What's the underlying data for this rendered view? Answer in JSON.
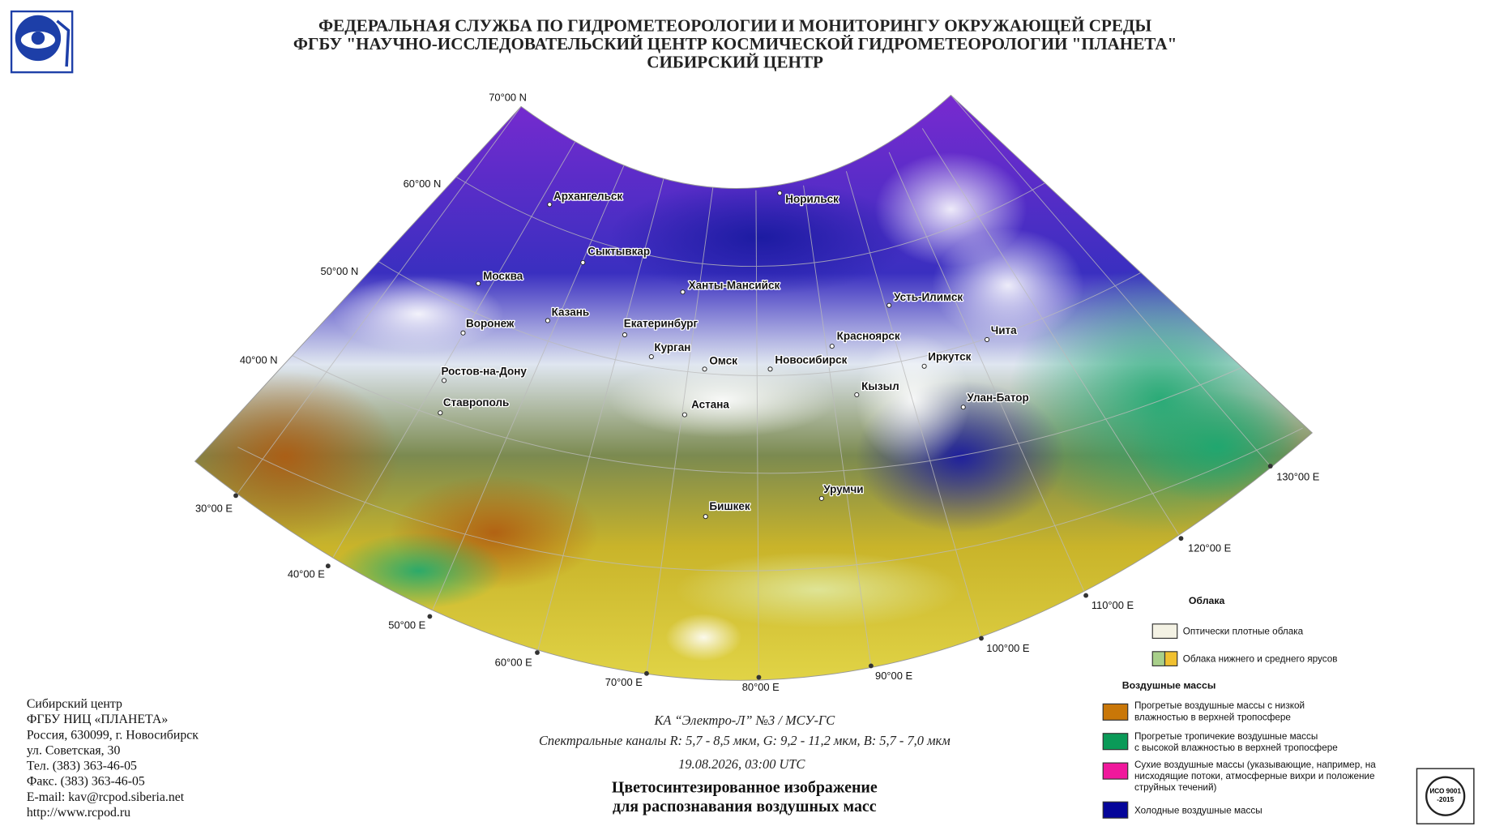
{
  "header": {
    "lines": [
      "ФЕДЕРАЛЬНАЯ СЛУЖБА ПО ГИДРОМЕТЕОРОЛОГИИ И МОНИТОРИНГУ ОКРУЖАЮЩЕЙ СРЕДЫ",
      "ФГБУ \"НАУЧНО-ИССЛЕДОВАТЕЛЬСКИЙ ЦЕНТР КОСМИЧЕСКОЙ ГИДРОМЕТЕОРОЛОГИИ \"ПЛАНЕТА\"",
      "СИБИРСКИЙ ЦЕНТР"
    ]
  },
  "map": {
    "lat_labels": [
      "70°00 N",
      "60°00 N",
      "50°00 N",
      "40°00 N"
    ],
    "lon_labels": [
      "30°00 E",
      "40°00 E",
      "50°00 E",
      "60°00 E",
      "70°00 E",
      "80°00 E",
      "90°00 E",
      "100°00 E",
      "110°00 E",
      "120°00 E",
      "130°00 E"
    ],
    "cities": [
      "Архангельск",
      "Норильск",
      "Сыктывкар",
      "Москва",
      "Ханты-Мансийск",
      "Усть-Илимск",
      "Казань",
      "Воронеж",
      "Екатеринбург",
      "Красноярск",
      "Чита",
      "Курган",
      "Иркутск",
      "Омск",
      "Новосибирск",
      "Ростов-на-Дону",
      "Кызыл",
      "Улан-Батор",
      "Астана",
      "Ставрополь",
      "Урумчи",
      "Бишкек"
    ]
  },
  "caption": {
    "satellite": "КА “Электро-Л” №3 / МСУ-ГС",
    "channels": "Спектральные каналы R: 5,7 - 8,5 мкм, G: 9,2 - 11,2 мкм, B: 5,7 - 7,0 мкм",
    "datetime": "19.08.2026, 03:00 UTC",
    "title_lines": [
      "Цветосинтезированное изображение",
      "для распознавания воздушных масс"
    ]
  },
  "contact": {
    "lines": [
      "Сибирский центр",
      "ФГБУ НИЦ «ПЛАНЕТА»",
      "Россия, 630099, г. Новосибирск",
      "ул. Советская, 30",
      "Тел. (383) 363-46-05",
      "Факс. (383) 363-46-05",
      "E-mail: kav@rcpod.siberia.net",
      "http://www.rcpod.ru"
    ]
  },
  "legend": {
    "clouds_title": "Облака",
    "clouds": [
      {
        "lines": [
          "Оптически плотные облака"
        ]
      },
      {
        "lines": [
          "Облака нижнего и среднего ярусов"
        ]
      }
    ],
    "air_title": "Воздушные массы",
    "air": [
      {
        "lines": [
          "Прогретые воздушные массы с низкой",
          "влажностью в верхней тропосфере"
        ]
      },
      {
        "lines": [
          "Прогретые тропичекие воздушные массы",
          "с высокой влажностью в верхней тропосфере"
        ]
      },
      {
        "lines": [
          "Сухие воздушные массы (указывающие, например, на",
          "нисходящие потоки, атмосферные вихри и положение",
          "струйных течений)"
        ]
      },
      {
        "lines": [
          "Холодные воздушные массы"
        ]
      }
    ]
  }
}
